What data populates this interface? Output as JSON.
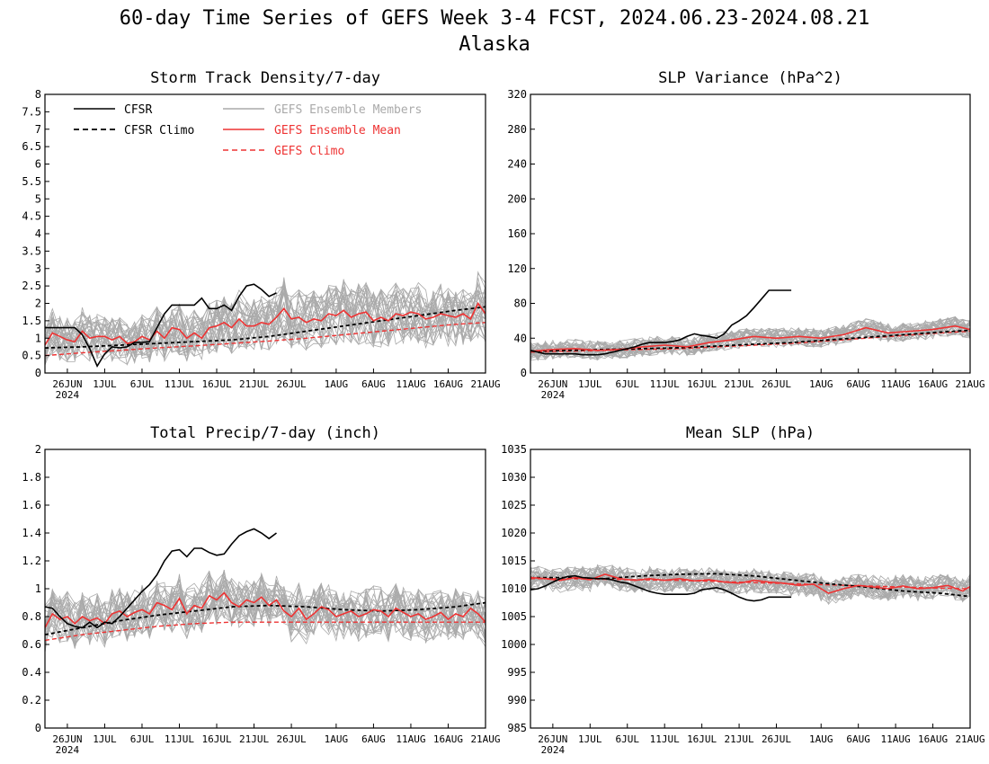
{
  "header": {
    "title": "60-day Time Series of GEFS Week 3-4 FCST, 2024.06.23-2024.08.21",
    "subtitle": "Alaska"
  },
  "legend": {
    "cfsr": "CFSR",
    "cfsr_climo": "CFSR Climo",
    "members": "GEFS Ensemble Members",
    "mean": "GEFS Ensemble Mean",
    "gefs_climo": "GEFS Climo"
  },
  "colors": {
    "cfsr": "#000000",
    "members": "#aaaaaa",
    "mean": "#ee3333",
    "gefs_climo": "#ee3333",
    "legend_members_text": "#aaaaaa",
    "legend_mean_text": "#ee3333"
  },
  "chart_data": [
    {
      "type": "line",
      "title": "Storm Track Density/7-day",
      "x_ticks": [
        "26JUN",
        "1JUL",
        "6JUL",
        "11JUL",
        "16JUL",
        "21JUL",
        "26JUL",
        "1AUG",
        "6AUG",
        "11AUG",
        "16AUG",
        "21AUG"
      ],
      "x_year": "2024",
      "y_ticks": [
        "0",
        "0.5",
        "1",
        "1.5",
        "2",
        "2.5",
        "3",
        "3.5",
        "4",
        "4.5",
        "5",
        "5.5",
        "6",
        "6.5",
        "7",
        "7.5",
        "8"
      ],
      "ylim": [
        0,
        8
      ],
      "x_range_days": [
        0,
        59
      ],
      "grid": false,
      "legend_placement": "top-left",
      "series": [
        {
          "name": "CFSR",
          "x": [
            0,
            1,
            2,
            3,
            4,
            5,
            6,
            7,
            8,
            9,
            10,
            11,
            12,
            13,
            14,
            15,
            16,
            17,
            18,
            19,
            20,
            21,
            22,
            23,
            24,
            25,
            26,
            27,
            28,
            29,
            30,
            31
          ],
          "values": [
            1.3,
            1.3,
            1.3,
            1.3,
            1.3,
            1.1,
            0.7,
            0.2,
            0.55,
            0.75,
            0.72,
            0.75,
            0.88,
            0.88,
            0.9,
            1.3,
            1.7,
            1.95,
            1.95,
            1.95,
            1.95,
            2.15,
            1.85,
            1.85,
            1.95,
            1.8,
            2.2,
            2.5,
            2.55,
            2.4,
            2.2,
            2.3
          ]
        },
        {
          "name": "CFSR Climo",
          "x": [
            0,
            5,
            10,
            15,
            20,
            25,
            30,
            35,
            40,
            45,
            50,
            55,
            59
          ],
          "values": [
            0.72,
            0.75,
            0.8,
            0.85,
            0.9,
            0.95,
            1.05,
            1.2,
            1.35,
            1.5,
            1.65,
            1.8,
            1.9
          ]
        },
        {
          "name": "GEFS Ensemble Mean",
          "x": [
            0,
            1,
            2,
            3,
            4,
            5,
            6,
            7,
            8,
            9,
            10,
            11,
            12,
            13,
            14,
            15,
            16,
            17,
            18,
            19,
            20,
            21,
            22,
            23,
            24,
            25,
            26,
            27,
            28,
            29,
            30,
            31,
            32,
            33,
            34,
            35,
            36,
            37,
            38,
            39,
            40,
            41,
            42,
            43,
            44,
            45,
            46,
            47,
            48,
            49,
            50,
            51,
            52,
            53,
            54,
            55,
            56,
            57,
            58,
            59
          ],
          "values": [
            0.8,
            1.15,
            1.05,
            0.95,
            0.9,
            1.2,
            1.0,
            1.05,
            1.05,
            0.95,
            1.05,
            0.85,
            0.9,
            1.05,
            0.95,
            1.2,
            1.0,
            1.3,
            1.25,
            1.0,
            1.15,
            1.0,
            1.3,
            1.35,
            1.45,
            1.3,
            1.55,
            1.35,
            1.35,
            1.45,
            1.4,
            1.6,
            1.85,
            1.55,
            1.6,
            1.45,
            1.55,
            1.5,
            1.7,
            1.65,
            1.8,
            1.6,
            1.7,
            1.75,
            1.5,
            1.6,
            1.5,
            1.7,
            1.65,
            1.75,
            1.7,
            1.55,
            1.6,
            1.7,
            1.65,
            1.6,
            1.7,
            1.55,
            2.0,
            1.7
          ]
        },
        {
          "name": "GEFS Climo",
          "x": [
            0,
            5,
            10,
            15,
            20,
            25,
            30,
            35,
            40,
            45,
            50,
            55,
            59
          ],
          "values": [
            0.5,
            0.58,
            0.65,
            0.72,
            0.78,
            0.85,
            0.92,
            1.0,
            1.1,
            1.2,
            1.3,
            1.4,
            1.45
          ]
        }
      ]
    },
    {
      "type": "line",
      "title": "SLP Variance (hPa^2)",
      "x_ticks": [
        "26JUN",
        "1JUL",
        "6JUL",
        "11JUL",
        "16JUL",
        "21JUL",
        "26JUL",
        "1AUG",
        "6AUG",
        "11AUG",
        "16AUG",
        "21AUG"
      ],
      "x_year": "2024",
      "y_ticks": [
        "0",
        "40",
        "80",
        "120",
        "160",
        "200",
        "240",
        "280",
        "320"
      ],
      "ylim": [
        0,
        320
      ],
      "x_range_days": [
        0,
        59
      ],
      "grid": false,
      "series": [
        {
          "name": "CFSR",
          "x": [
            0,
            1,
            2,
            3,
            4,
            5,
            6,
            7,
            8,
            9,
            10,
            11,
            12,
            13,
            14,
            15,
            16,
            17,
            18,
            19,
            20,
            21,
            22,
            23,
            24,
            25,
            26,
            27,
            28,
            29,
            30,
            31,
            32,
            33,
            34,
            35
          ],
          "values": [
            26,
            24,
            22,
            22,
            22,
            22,
            22,
            21,
            21,
            21,
            22,
            24,
            26,
            28,
            30,
            33,
            35,
            35,
            35,
            36,
            38,
            42,
            45,
            43,
            42,
            40,
            45,
            55,
            60,
            66,
            75,
            85,
            95,
            95,
            95,
            95
          ]
        },
        {
          "name": "CFSR Climo",
          "x": [
            0,
            5,
            10,
            15,
            20,
            25,
            30,
            35,
            40,
            45,
            50,
            55,
            59
          ],
          "values": [
            25,
            26,
            27,
            28,
            29,
            31,
            33,
            35,
            38,
            41,
            44,
            47,
            49
          ]
        },
        {
          "name": "GEFS Ensemble Mean",
          "x": [
            0,
            3,
            6,
            9,
            12,
            15,
            18,
            21,
            24,
            27,
            30,
            33,
            36,
            39,
            42,
            45,
            48,
            51,
            54,
            57,
            59
          ],
          "values": [
            25,
            27,
            28,
            26,
            27,
            30,
            32,
            30,
            35,
            38,
            42,
            40,
            42,
            40,
            44,
            52,
            46,
            48,
            50,
            54,
            50
          ]
        },
        {
          "name": "GEFS Climo",
          "x": [
            0,
            5,
            10,
            15,
            20,
            25,
            30,
            35,
            40,
            45,
            50,
            55,
            59
          ],
          "values": [
            24,
            25,
            26,
            27,
            28,
            30,
            32,
            34,
            37,
            40,
            43,
            46,
            48
          ]
        }
      ]
    },
    {
      "type": "line",
      "title": "Total Precip/7-day (inch)",
      "x_ticks": [
        "26JUN",
        "1JUL",
        "6JUL",
        "11JUL",
        "16JUL",
        "21JUL",
        "26JUL",
        "1AUG",
        "6AUG",
        "11AUG",
        "16AUG",
        "21AUG"
      ],
      "x_year": "2024",
      "y_ticks": [
        "0",
        "0.2",
        "0.4",
        "0.6",
        "0.8",
        "1",
        "1.2",
        "1.4",
        "1.6",
        "1.8",
        "2"
      ],
      "ylim": [
        0,
        2
      ],
      "x_range_days": [
        0,
        59
      ],
      "grid": false,
      "series": [
        {
          "name": "CFSR",
          "x": [
            0,
            1,
            2,
            3,
            4,
            5,
            6,
            7,
            8,
            9,
            10,
            11,
            12,
            13,
            14,
            15,
            16,
            17,
            18,
            19,
            20,
            21,
            22,
            23,
            24,
            25,
            26,
            27,
            28,
            29,
            30,
            31
          ],
          "values": [
            0.87,
            0.86,
            0.8,
            0.75,
            0.73,
            0.72,
            0.76,
            0.72,
            0.76,
            0.75,
            0.8,
            0.86,
            0.92,
            0.98,
            1.03,
            1.1,
            1.2,
            1.27,
            1.28,
            1.23,
            1.29,
            1.29,
            1.26,
            1.24,
            1.25,
            1.32,
            1.38,
            1.41,
            1.43,
            1.4,
            1.36,
            1.4
          ]
        },
        {
          "name": "CFSR Climo",
          "x": [
            0,
            5,
            10,
            15,
            20,
            25,
            30,
            35,
            40,
            45,
            50,
            55,
            59
          ],
          "values": [
            0.67,
            0.72,
            0.77,
            0.81,
            0.84,
            0.87,
            0.88,
            0.87,
            0.85,
            0.84,
            0.85,
            0.87,
            0.9
          ]
        },
        {
          "name": "GEFS Ensemble Mean",
          "x": [
            0,
            1,
            2,
            3,
            4,
            5,
            6,
            7,
            8,
            9,
            10,
            11,
            12,
            13,
            14,
            15,
            16,
            17,
            18,
            19,
            20,
            21,
            22,
            23,
            24,
            25,
            26,
            27,
            28,
            29,
            30,
            31,
            32,
            33,
            34,
            35,
            36,
            37,
            38,
            39,
            40,
            41,
            42,
            43,
            44,
            45,
            46,
            47,
            48,
            49,
            50,
            51,
            52,
            53,
            54,
            55,
            56,
            57,
            58,
            59
          ],
          "values": [
            0.72,
            0.82,
            0.78,
            0.8,
            0.75,
            0.8,
            0.77,
            0.79,
            0.75,
            0.82,
            0.84,
            0.8,
            0.83,
            0.85,
            0.82,
            0.9,
            0.88,
            0.85,
            0.93,
            0.82,
            0.88,
            0.86,
            0.95,
            0.92,
            0.97,
            0.9,
            0.87,
            0.92,
            0.9,
            0.94,
            0.88,
            0.92,
            0.84,
            0.8,
            0.86,
            0.78,
            0.82,
            0.87,
            0.85,
            0.8,
            0.82,
            0.84,
            0.8,
            0.82,
            0.85,
            0.84,
            0.8,
            0.86,
            0.83,
            0.8,
            0.82,
            0.78,
            0.8,
            0.83,
            0.78,
            0.82,
            0.8,
            0.86,
            0.82,
            0.76
          ]
        },
        {
          "name": "GEFS Climo",
          "x": [
            0,
            5,
            10,
            15,
            20,
            25,
            30,
            35,
            40,
            45,
            50,
            55,
            59
          ],
          "values": [
            0.63,
            0.67,
            0.7,
            0.73,
            0.75,
            0.76,
            0.76,
            0.76,
            0.76,
            0.76,
            0.76,
            0.76,
            0.76
          ]
        }
      ]
    },
    {
      "type": "line",
      "title": "Mean SLP (hPa)",
      "x_ticks": [
        "26JUN",
        "1JUL",
        "6JUL",
        "11JUL",
        "16JUL",
        "21JUL",
        "26JUL",
        "1AUG",
        "6AUG",
        "11AUG",
        "16AUG",
        "21AUG"
      ],
      "x_year": "2024",
      "y_ticks": [
        "985",
        "990",
        "995",
        "1000",
        "1005",
        "1010",
        "1015",
        "1020",
        "1025",
        "1030",
        "1035"
      ],
      "ylim": [
        985,
        1035
      ],
      "x_range_days": [
        0,
        59
      ],
      "grid": false,
      "series": [
        {
          "name": "CFSR",
          "x": [
            0,
            1,
            2,
            3,
            4,
            5,
            6,
            7,
            8,
            9,
            10,
            11,
            12,
            13,
            14,
            15,
            16,
            17,
            18,
            19,
            20,
            21,
            22,
            23,
            24,
            25,
            26,
            27,
            28,
            29,
            30,
            31,
            32,
            33,
            34,
            35
          ],
          "values": [
            1009.8,
            1010.0,
            1010.5,
            1011.2,
            1011.8,
            1012.2,
            1012.3,
            1012.0,
            1011.9,
            1011.8,
            1011.8,
            1011.6,
            1011.2,
            1011.0,
            1010.5,
            1010.0,
            1009.5,
            1009.2,
            1009.0,
            1009.0,
            1009.0,
            1009.0,
            1009.2,
            1009.8,
            1010.0,
            1010.2,
            1009.8,
            1009.2,
            1008.5,
            1008.0,
            1007.8,
            1008.0,
            1008.5,
            1008.5,
            1008.5,
            1008.5
          ]
        },
        {
          "name": "CFSR Climo",
          "x": [
            0,
            5,
            10,
            15,
            20,
            25,
            30,
            35,
            40,
            45,
            50,
            55,
            59
          ],
          "values": [
            1012.0,
            1012.0,
            1011.8,
            1012.3,
            1012.6,
            1012.7,
            1012.3,
            1011.6,
            1010.9,
            1010.3,
            1009.6,
            1009.2,
            1008.6
          ]
        },
        {
          "name": "GEFS Ensemble Mean",
          "x": [
            0,
            2,
            4,
            6,
            8,
            10,
            12,
            14,
            16,
            18,
            20,
            22,
            24,
            26,
            28,
            30,
            32,
            34,
            36,
            38,
            40,
            42,
            44,
            46,
            48,
            50,
            52,
            54,
            56,
            58,
            59
          ],
          "values": [
            1012.0,
            1011.8,
            1011.5,
            1012.0,
            1011.6,
            1012.6,
            1011.8,
            1011.5,
            1011.8,
            1011.5,
            1011.8,
            1011.4,
            1011.6,
            1011.2,
            1011.0,
            1011.5,
            1011.2,
            1011.0,
            1010.6,
            1010.8,
            1009.2,
            1010.0,
            1010.6,
            1010.3,
            1010.0,
            1010.5,
            1010.0,
            1010.2,
            1010.6,
            1009.6,
            1010.4
          ]
        },
        {
          "name": "GEFS Climo",
          "x": [
            0,
            5,
            10,
            15,
            20,
            25,
            30,
            35,
            40,
            45,
            50,
            55,
            59
          ],
          "values": [
            1011.8,
            1011.8,
            1011.7,
            1011.6,
            1011.5,
            1011.3,
            1011.1,
            1010.9,
            1010.7,
            1010.5,
            1010.3,
            1010.1,
            1010.0
          ]
        }
      ]
    }
  ]
}
